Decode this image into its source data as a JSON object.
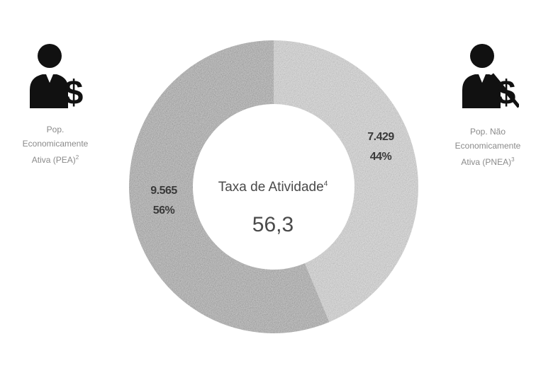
{
  "chart_data": {
    "type": "pie",
    "donut": true,
    "slices": [
      {
        "value": 9565,
        "value_label": "9.565",
        "percent": 56,
        "percent_label": "56%",
        "color": "#b3b3b3"
      },
      {
        "value": 7429,
        "value_label": "7.429",
        "percent": 44,
        "percent_label": "44%",
        "color": "#d6d6d6"
      }
    ],
    "center": {
      "title": "Taxa de Atividade",
      "title_note": "4",
      "value": "56,3"
    },
    "legend_left": {
      "lines": [
        "Pop.",
        "Economicamente",
        "Ativa (PEA)"
      ],
      "note": "2",
      "icon": "businessman-dollar-icon"
    },
    "legend_right": {
      "lines": [
        "Pop. Não",
        "Economicamente",
        "Ativa (PNEA)"
      ],
      "note": "3",
      "icon": "businessman-dollar-crossed-icon"
    }
  }
}
